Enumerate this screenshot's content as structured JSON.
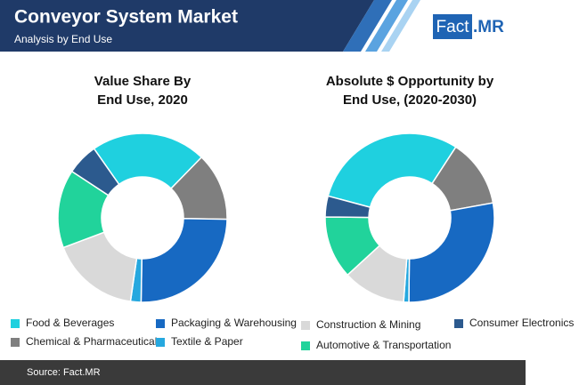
{
  "header": {
    "title": "Conveyor System Market",
    "subtitle": "Analysis by End Use",
    "logo_left": "Fact",
    "logo_right": ".MR"
  },
  "chart_data": [
    {
      "type": "pie",
      "title": [
        "Value Share By",
        "End Use, 2020"
      ],
      "startangle": -35,
      "donut": true,
      "categories": [
        "Food & Beverages",
        "Chemical & Pharmaceutical",
        "Packaging & Warehousing",
        "Textile & Paper",
        "Construction & Mining",
        "Automotive & Transportation",
        "Consumer Electronics"
      ],
      "colors": [
        "#1fd0df",
        "#7f7f7f",
        "#1769c2",
        "#26a8df",
        "#d9d9d9",
        "#21d39b",
        "#2c5a8e"
      ],
      "values": [
        22,
        13,
        25,
        2,
        17,
        15,
        6
      ]
    },
    {
      "type": "pie",
      "title": [
        "Absolute $ Opportunity by",
        "End Use, (2020-2030)"
      ],
      "startangle": -75,
      "donut": true,
      "categories": [
        "Food & Beverages",
        "Chemical & Pharmaceutical",
        "Packaging & Warehousing",
        "Textile & Paper",
        "Construction & Mining",
        "Automotive & Transportation",
        "Consumer Electronics"
      ],
      "colors": [
        "#1fd0df",
        "#7f7f7f",
        "#1769c2",
        "#26a8df",
        "#d9d9d9",
        "#21d39b",
        "#2c5a8e"
      ],
      "values": [
        30,
        13,
        28,
        1,
        12,
        12,
        4
      ]
    }
  ],
  "legend": [
    {
      "name": "Food & Beverages",
      "color": "#1fd0df"
    },
    {
      "name": "Packaging & Warehousing",
      "color": "#1769c2"
    },
    {
      "name": "Construction & Mining",
      "color": "#d9d9d9"
    },
    {
      "name": "Consumer Electronics",
      "color": "#2c5a8e"
    },
    {
      "name": "Chemical & Pharmaceutical",
      "color": "#7f7f7f"
    },
    {
      "name": "Textile & Paper",
      "color": "#26a8df"
    },
    {
      "name": "Automotive & Transportation",
      "color": "#21d39b"
    }
  ],
  "footer": {
    "source": "Source: Fact.MR"
  }
}
